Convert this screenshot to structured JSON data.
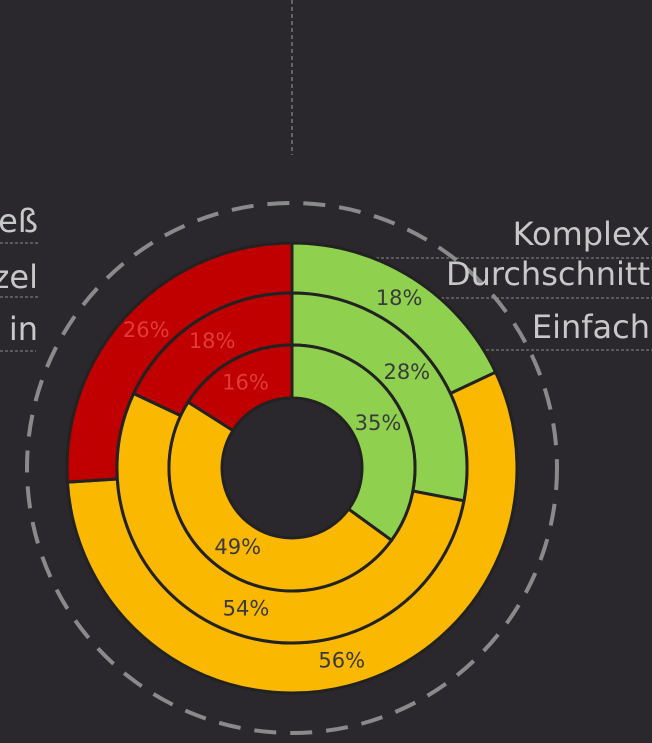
{
  "chart_data": {
    "type": "donut",
    "rings": [
      {
        "name": "Komplex",
        "values": [
          18,
          56,
          26
        ],
        "value_labels": [
          "18%",
          "56%",
          "26%"
        ]
      },
      {
        "name": "Durchschnitt",
        "values": [
          28,
          54,
          18
        ],
        "value_labels": [
          "28%",
          "54%",
          "18%"
        ]
      },
      {
        "name": "Einfach",
        "values": [
          35,
          49,
          16
        ],
        "value_labels": [
          "35%",
          "49%",
          "16%"
        ]
      }
    ],
    "colors": [
      "#8fd14f",
      "#fbb800",
      "#c00000"
    ]
  },
  "cropped_labels": [
    "eß",
    "zel",
    "in"
  ]
}
